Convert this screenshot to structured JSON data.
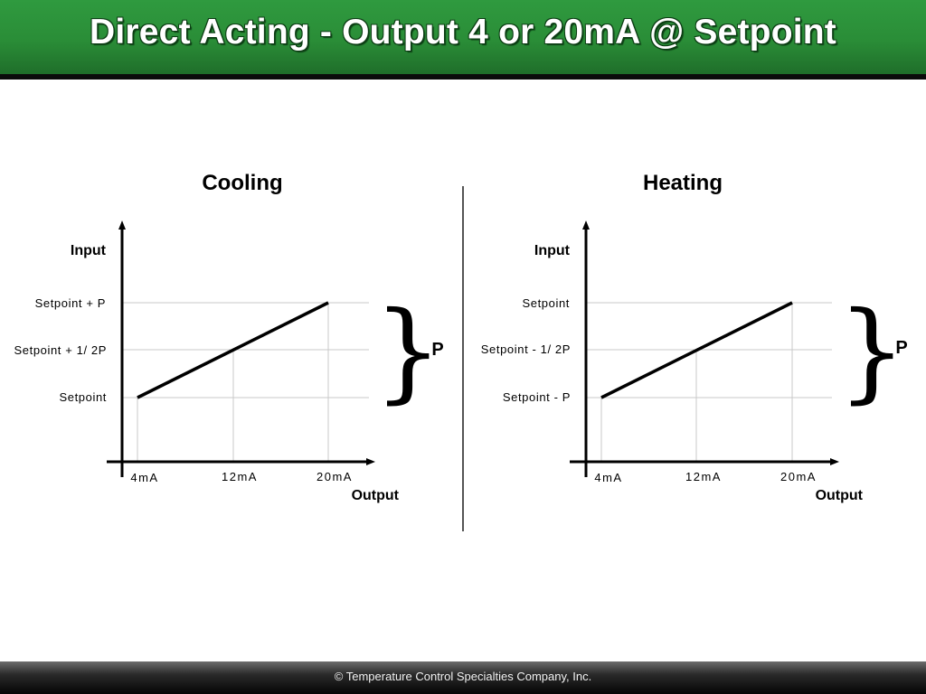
{
  "header": {
    "title": "Direct Acting - Output 4 or 20mA @ Setpoint"
  },
  "footer": {
    "text": "© Temperature Control Specialties Company, Inc."
  },
  "diagrams": [
    {
      "title": "Cooling",
      "y_axis_label": "Input",
      "x_axis_label": "Output",
      "y_labels": [
        "Setpoint +   P",
        "Setpoint +  1/ 2P",
        "Setpoint"
      ],
      "x_labels": [
        "4mA",
        "12mA",
        "20mA"
      ],
      "band_label": "P"
    },
    {
      "title": "Heating",
      "y_axis_label": "Input",
      "x_axis_label": "Output",
      "y_labels": [
        "Setpoint",
        "Setpoint - 1/ 2P",
        "Setpoint - P"
      ],
      "x_labels": [
        "4mA",
        "12mA",
        "20mA"
      ],
      "band_label": "P"
    }
  ]
}
